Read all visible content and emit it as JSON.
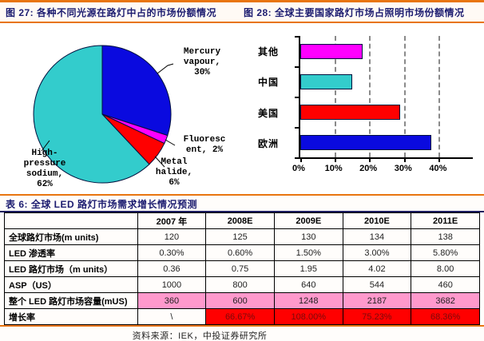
{
  "figures": {
    "fig27_title": "图 27: 各种不同光源在路灯中占的市场份额情况",
    "fig28_title": "图 28: 全球主要国家路灯市场占照明市场份额情况"
  },
  "table_section": {
    "title": "表 6: 全球 LED 路灯市场需求增长情况预测",
    "source": "资料来源：IEK，中投证券研究所"
  },
  "colors": {
    "accent_orange": "#E8750F",
    "title_navy": "#1C1C70",
    "pie_blue": "#0A0ADF",
    "pie_magenta": "#FF00FF",
    "pie_red": "#FF0000",
    "pie_cyan": "#33CCCC",
    "pink_cell_bg": "#FF99CC",
    "red_cell_bg": "#FF0000",
    "red_cell_text": "#7A0A0A"
  },
  "chart_data": [
    {
      "type": "pie",
      "title": "各种不同光源在路灯中占的市场份额情况",
      "labels": [
        "Mercury vapour",
        "Fluorescent",
        "Metal halide",
        "High-pressure sodium"
      ],
      "values": [
        30,
        2,
        6,
        62
      ],
      "colors": [
        "#0A0ADF",
        "#FF00FF",
        "#FF0000",
        "#33CCCC"
      ],
      "label_texts": [
        "Mercury\nvapour,\n30%",
        "Fluoresc\nent, 2%",
        "Metal\nhalide,\n6%",
        "High-\npressure\nsodium,\n62%"
      ],
      "start_angle": "top",
      "direction": "clockwise",
      "legend": "none"
    },
    {
      "type": "bar",
      "orientation": "horizontal",
      "title": "全球主要国家路灯市场占照明市场份额情况",
      "categories": [
        "其他",
        "中国",
        "美国",
        "欧洲"
      ],
      "values": [
        18,
        15,
        29,
        38
      ],
      "unit": "%",
      "colors": [
        "#FF00FF",
        "#33CCCC",
        "#FF0000",
        "#0A0ADF"
      ],
      "xlim": [
        0,
        50
      ],
      "x_ticks": [
        "0%",
        "10%",
        "20%",
        "30%",
        "40%"
      ],
      "grid": "dashed-vertical",
      "legend": "none"
    }
  ],
  "table": {
    "header": [
      "",
      "2007 年",
      "2008E",
      "2009E",
      "2010E",
      "2011E"
    ],
    "rows": [
      {
        "label": "全球路灯市场(m units)",
        "cells": [
          {
            "text": "120"
          },
          {
            "text": "125"
          },
          {
            "text": "130"
          },
          {
            "text": "134"
          },
          {
            "text": "138"
          }
        ]
      },
      {
        "label": "LED 渗透率",
        "cells": [
          {
            "text": "0.30%"
          },
          {
            "text": "0.60%"
          },
          {
            "text": "1.50%"
          },
          {
            "text": "3.00%"
          },
          {
            "text": "5.80%"
          }
        ]
      },
      {
        "label": "LED 路灯市场（m units）",
        "cells": [
          {
            "text": "0.36"
          },
          {
            "text": "0.75"
          },
          {
            "text": "1.95"
          },
          {
            "text": "4.02"
          },
          {
            "text": "8.00"
          }
        ]
      },
      {
        "label": "ASP（US）",
        "cells": [
          {
            "text": "1000"
          },
          {
            "text": "800"
          },
          {
            "text": "640"
          },
          {
            "text": "544"
          },
          {
            "text": "460"
          }
        ]
      },
      {
        "label": "整个 LED 路灯市场容量(mUS)",
        "cells": [
          {
            "text": "360",
            "bg": "pink"
          },
          {
            "text": "600",
            "bg": "pink"
          },
          {
            "text": "1248",
            "bg": "pink"
          },
          {
            "text": "2187",
            "bg": "pink"
          },
          {
            "text": "3682",
            "bg": "pink"
          }
        ]
      },
      {
        "label": "增长率",
        "cells": [
          {
            "text": "\\"
          },
          {
            "text": "66.67%",
            "bg": "red"
          },
          {
            "text": "108.00%",
            "bg": "red"
          },
          {
            "text": "75.23%",
            "bg": "red"
          },
          {
            "text": "68.36%",
            "bg": "red"
          }
        ]
      }
    ]
  }
}
